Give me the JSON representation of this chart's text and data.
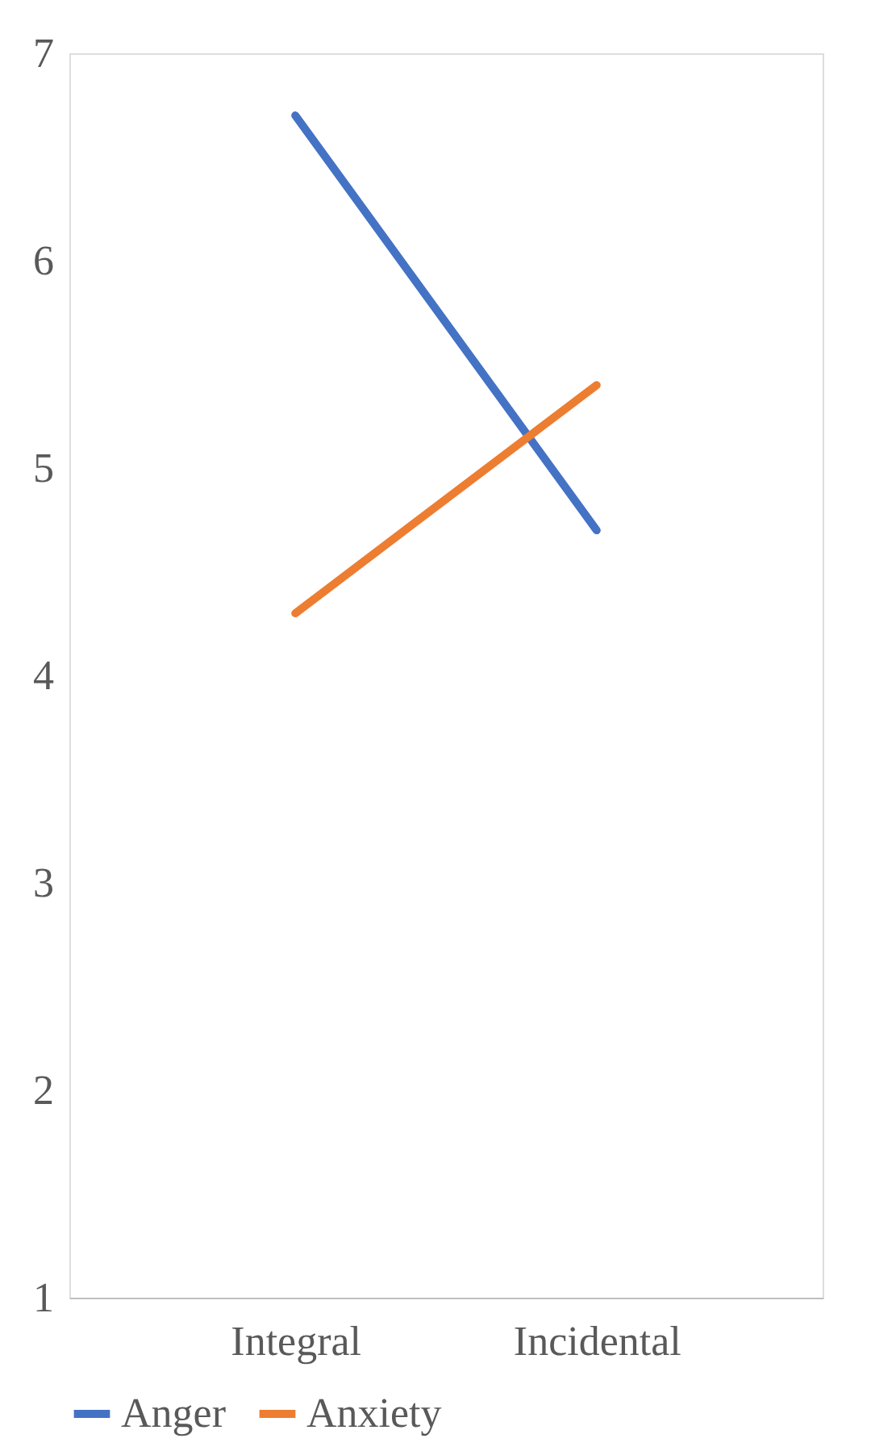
{
  "chart_data": {
    "type": "line",
    "categories": [
      "Integral",
      "Incidental"
    ],
    "series": [
      {
        "name": "Anger",
        "color": "#4472c4",
        "values": [
          6.7,
          4.7
        ]
      },
      {
        "name": "Anxiety",
        "color": "#ed7d31",
        "values": [
          4.3,
          5.4
        ]
      }
    ],
    "ylim": [
      1,
      7
    ],
    "yticks": [
      1,
      2,
      3,
      4,
      5,
      6,
      7
    ],
    "grid": false,
    "legend": "bottom",
    "marker": "none",
    "line_style": "solid"
  }
}
